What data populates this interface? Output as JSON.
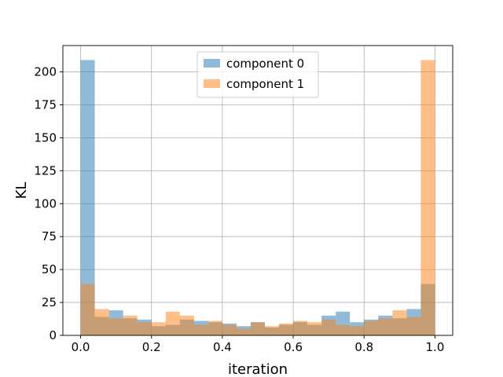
{
  "chart_data": {
    "type": "bar",
    "subtype": "histogram",
    "title": "",
    "xlabel": "iteration",
    "ylabel": "KL",
    "xlim": [
      -0.05,
      1.05
    ],
    "ylim": [
      0,
      220
    ],
    "xticks": [
      0.0,
      0.2,
      0.4,
      0.6,
      0.8,
      1.0
    ],
    "xtick_labels": [
      "0.0",
      "0.2",
      "0.4",
      "0.6",
      "0.8",
      "1.0"
    ],
    "yticks": [
      0,
      25,
      50,
      75,
      100,
      125,
      150,
      175,
      200
    ],
    "ytick_labels": [
      "0",
      "25",
      "50",
      "75",
      "100",
      "125",
      "150",
      "175",
      "200"
    ],
    "grid": true,
    "legend_position": "upper-center",
    "bin_edges": [
      0.0,
      0.04,
      0.08,
      0.12,
      0.16,
      0.2,
      0.24,
      0.28,
      0.32,
      0.36,
      0.4,
      0.44,
      0.48,
      0.52,
      0.56,
      0.6,
      0.64,
      0.68,
      0.72,
      0.76,
      0.8,
      0.84,
      0.88,
      0.92,
      0.96,
      1.0
    ],
    "series": [
      {
        "name": "component 0",
        "color": "#1f77b4",
        "values": [
          209,
          14,
          19,
          13,
          12,
          7,
          8,
          12,
          11,
          10,
          9,
          7,
          10,
          6,
          8,
          10,
          8,
          15,
          18,
          10,
          12,
          15,
          13,
          20,
          39
        ]
      },
      {
        "name": "component 1",
        "color": "#ff7f0e",
        "values": [
          39,
          20,
          13,
          15,
          10,
          10,
          18,
          15,
          8,
          11,
          8,
          5,
          10,
          7,
          9,
          11,
          10,
          12,
          8,
          7,
          11,
          13,
          19,
          14,
          209
        ]
      }
    ]
  }
}
